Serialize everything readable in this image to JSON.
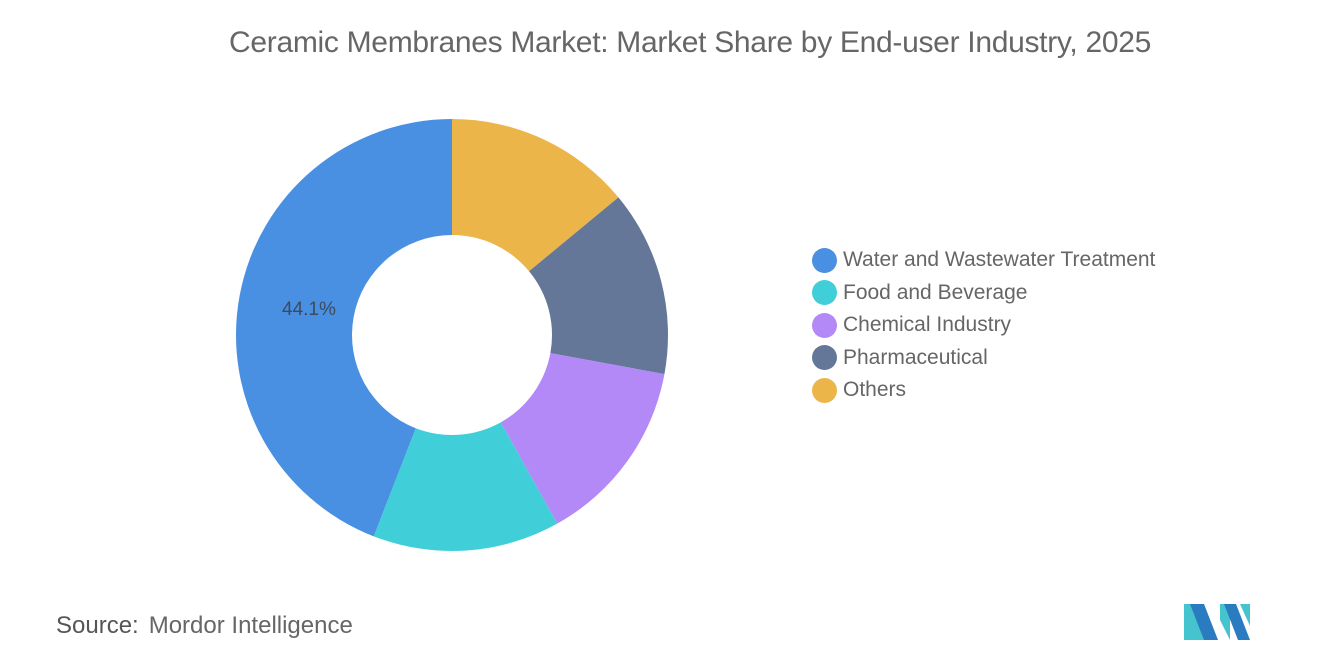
{
  "title": "Ceramic Membranes Market: Market Share by End-user Industry, 2025",
  "legend": [
    {
      "label": "Water and Wastewater Treatment",
      "color": "#4a90e2"
    },
    {
      "label": "Food and Beverage",
      "color": "#40cfd9"
    },
    {
      "label": "Chemical Industry",
      "color": "#b388f7"
    },
    {
      "label": "Pharmaceutical",
      "color": "#657798"
    },
    {
      "label": "Others",
      "color": "#ebb54a"
    }
  ],
  "data_label": "44.1%",
  "source": {
    "prefix": "Source:",
    "name": "Mordor Intelligence"
  },
  "logo": {
    "icon": "mordor-intelligence-logo-icon",
    "colors": [
      "#2a7bbf",
      "#45c4cf"
    ]
  },
  "chart_data": {
    "type": "pie",
    "subtype": "donut",
    "title": "Ceramic Membranes Market: Market Share by End-user Industry, 2025",
    "categories": [
      "Water and Wastewater Treatment",
      "Food and Beverage",
      "Chemical Industry",
      "Pharmaceutical",
      "Others"
    ],
    "values": [
      44.1,
      14.0,
      14.0,
      13.9,
      14.0
    ],
    "unit": "%",
    "labels_shown": {
      "Water and Wastewater Treatment": "44.1%"
    },
    "colors": [
      "#4a90e2",
      "#40cfd9",
      "#b388f7",
      "#657798",
      "#ebb54a"
    ],
    "legend_position": "right",
    "start_angle": "12 o'clock, clockwise order: Others, Pharmaceutical, Chemical Industry, Food and Beverage, Water and Wastewater Treatment"
  }
}
